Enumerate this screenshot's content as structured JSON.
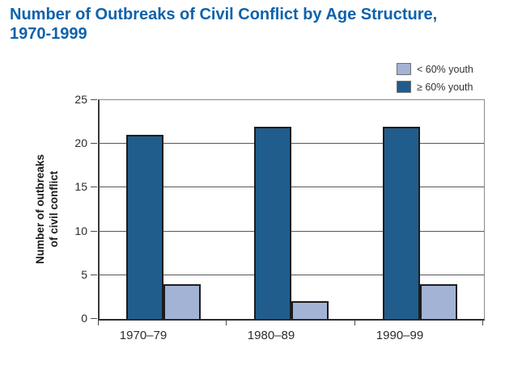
{
  "title": {
    "line1": "Number of Outbreaks of Civil Conflict by Age Structure,",
    "line2": "1970-1999",
    "color": "#0f62ab"
  },
  "legend": {
    "items": [
      {
        "label": "< 60% youth",
        "swatch_color": "#a3b3d5"
      },
      {
        "label": "≥ 60% youth",
        "swatch_color": "#205d8c"
      }
    ],
    "position": "top-right"
  },
  "y_axis": {
    "title_line1": "Number of outbreaks",
    "title_line2": "of civil conflict",
    "tick_labels": [
      "0",
      "5",
      "10",
      "15",
      "20",
      "25"
    ]
  },
  "chart_data": {
    "type": "bar",
    "title": "Number of Outbreaks of Civil Conflict by Age Structure, 1970-1999",
    "categories": [
      "1970–79",
      "1980–89",
      "1990–99"
    ],
    "series": [
      {
        "name": "≥ 60% youth",
        "values": [
          21,
          22,
          22
        ],
        "color": "#205d8c"
      },
      {
        "name": "< 60% youth",
        "values": [
          4,
          2,
          4
        ],
        "color": "#a3b3d5"
      }
    ],
    "xlabel": "",
    "ylabel": "Number of outbreaks of civil conflict",
    "ylim": [
      0,
      25
    ],
    "yticks": [
      0,
      5,
      10,
      15,
      20,
      25
    ],
    "grid": true,
    "gridline_color": "#565656",
    "bar_border_color": "#1c1c1c",
    "legend_position": "top-right"
  }
}
